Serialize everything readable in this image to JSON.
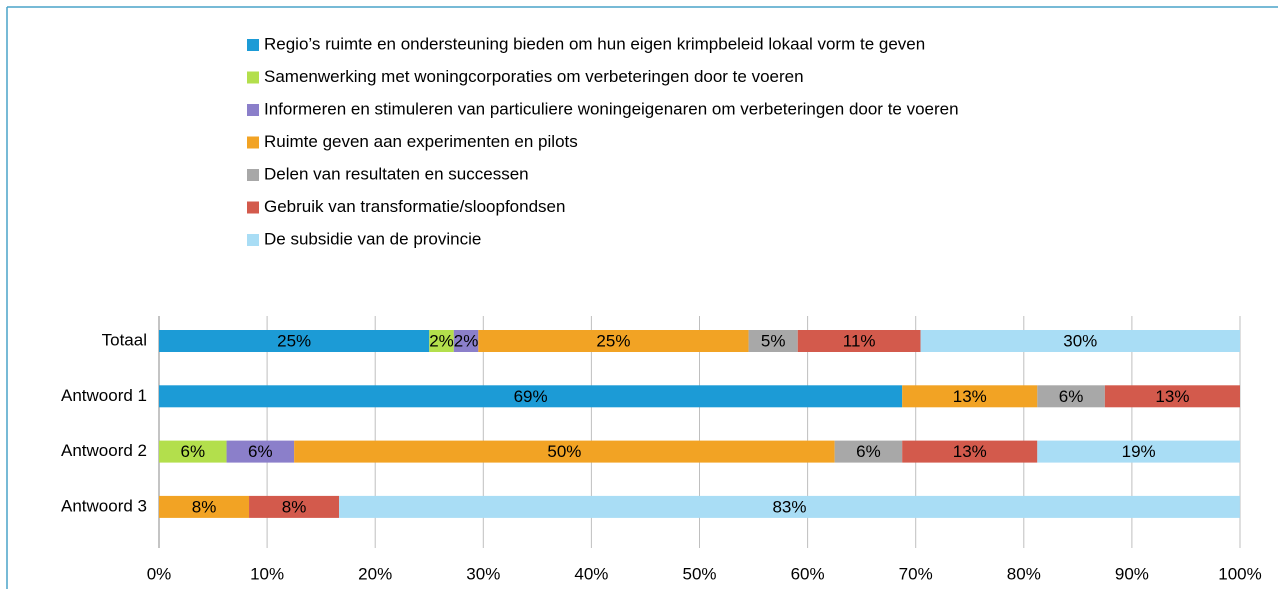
{
  "chart_data": {
    "type": "stacked_hbar",
    "categories": [
      "Totaal",
      "Antwoord 1",
      "Antwoord 2",
      "Antwoord 3"
    ],
    "series": [
      {
        "name": "Regio’s ruimte en ondersteuning bieden om hun eigen krimpbeleid lokaal vorm te geven",
        "color": "#1c9bd6",
        "values": [
          25,
          68.75,
          null,
          null
        ],
        "value_labels": [
          "25%",
          "69%",
          null,
          null
        ]
      },
      {
        "name": "Samenwerking met woningcorporaties om verbeteringen door te voeren",
        "color": "#b3df4c",
        "values": [
          2.27,
          null,
          6.25,
          null
        ],
        "value_labels": [
          "2%",
          null,
          "6%",
          null
        ]
      },
      {
        "name": "Informeren en stimuleren van particuliere woningeigenaren om verbeteringen door te voeren",
        "color": "#8b7fca",
        "values": [
          2.27,
          null,
          6.25,
          null
        ],
        "value_labels": [
          "2%",
          null,
          "6%",
          null
        ]
      },
      {
        "name": "Ruimte geven aan experimenten en pilots",
        "color": "#f2a324",
        "values": [
          25,
          12.5,
          50,
          8.33
        ],
        "value_labels": [
          "25%",
          "13%",
          "50%",
          "8%"
        ]
      },
      {
        "name": "Delen van resultaten en successen",
        "color": "#a8a8a8",
        "values": [
          4.55,
          6.25,
          6.25,
          null
        ],
        "value_labels": [
          "5%",
          "6%",
          "6%",
          null
        ]
      },
      {
        "name": "Gebruik van transformatie/sloopfondsen",
        "color": "#d35a4c",
        "values": [
          11.36,
          12.5,
          12.5,
          8.33
        ],
        "value_labels": [
          "11%",
          "13%",
          "13%",
          "8%"
        ]
      },
      {
        "name": "De subsidie van de provincie",
        "color": "#a9ddf5",
        "values": [
          29.55,
          null,
          18.75,
          83.33
        ],
        "value_labels": [
          "30%",
          null,
          "19%",
          "83%"
        ]
      }
    ],
    "xlim": [
      0,
      100
    ],
    "xticks": [
      {
        "value": 0,
        "label": "0%"
      },
      {
        "value": 10,
        "label": "10%"
      },
      {
        "value": 20,
        "label": "20%"
      },
      {
        "value": 30,
        "label": "30%"
      },
      {
        "value": 40,
        "label": "40%"
      },
      {
        "value": 50,
        "label": "50%"
      },
      {
        "value": 60,
        "label": "60%"
      },
      {
        "value": 70,
        "label": "70%"
      },
      {
        "value": 80,
        "label": "80%"
      },
      {
        "value": 90,
        "label": "90%"
      },
      {
        "value": 100,
        "label": "100%"
      }
    ],
    "grid": true,
    "legend": "top"
  }
}
